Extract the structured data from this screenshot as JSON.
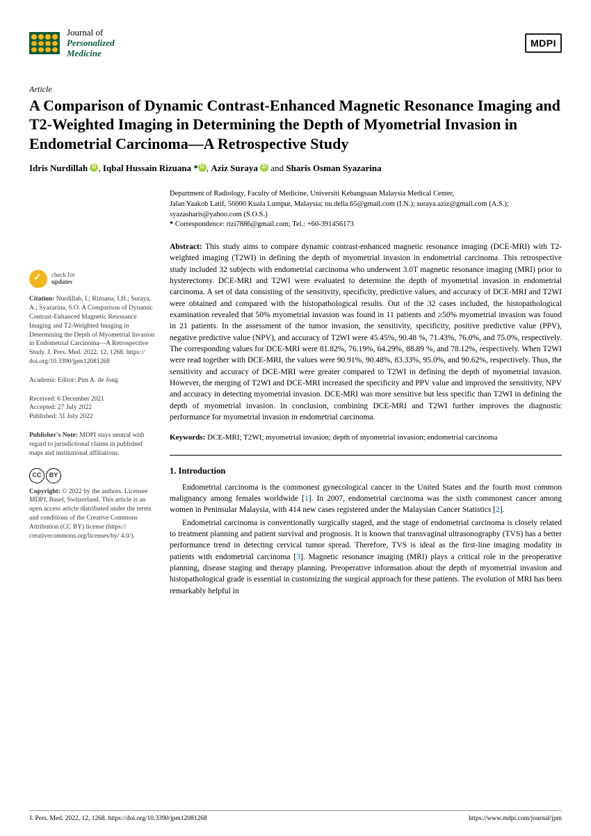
{
  "journal": {
    "line1": "Journal of",
    "line2": "Personalized",
    "line3": "Medicine"
  },
  "publisher_logo": "MDPI",
  "article_type": "Article",
  "title": "A Comparison of Dynamic Contrast-Enhanced Magnetic Resonance Imaging and T2-Weighted Imaging in Determining the Depth of Myometrial Invasion in Endometrial Carcinoma—A Retrospective Study",
  "authors": {
    "a1": "Idris Nurdillah",
    "a2": "Iqbal Hussain Rizuana *",
    "a3": "Aziz Suraya",
    "a4": "Sharis Osman Syazarina",
    "sep_comma": ", ",
    "sep_and": " and "
  },
  "affiliation": {
    "dept": "Department of Radiology, Faculty of Medicine, Universiti Kebangsaan Malaysia Medical Center,",
    "addr": "Jalan Yaakob Latif, 56000 Kuala Lumpur, Malaysia; nu.della.65@gmail.com (I.N.); suraya.aziz@gmail.com (A.S.);",
    "mail": "syazasharis@yahoo.com (S.O.S.)",
    "corr_star": "*",
    "corr": "Correspondence: rizi7886@gmail.com; Tel.: +60-391456173"
  },
  "abstract_label": "Abstract:",
  "abstract": "This study aims to compare dynamic contrast-enhanced magnetic resonance imaging (DCE-MRI) with T2-weighted imaging (T2WI) in defining the depth of myometrial invasion in endometrial carcinoma. This retrospective study included 32 subjects with endometrial carcinoma who underwent 3.0T magnetic resonance imaging (MRI) prior to hysterectomy. DCE-MRI and T2WI were evaluated to determine the depth of myometrial invasion in endometrial carcinoma. A set of data consisting of the sensitivity, specificity, predictive values, and accuracy of DCE-MRI and T2WI were obtained and compared with the histopathological results. Out of the 32 cases included, the histopathological examination revealed that 50% myometrial invasion was found in 11 patients and ≥50% myometrial invasion was found in 21 patients. In the assessment of the tumor invasion, the sensitivity, specificity, positive predictive value (PPV), negative predictive value (NPV), and accuracy of T2WI were 45.45%, 90.48 %, 71.43%, 76.0%, and 75.0%, respectively. The corresponding values for DCE-MRI were 81.82%, 76.19%, 64.29%, 88.89 %, and 78.12%, respectively. When T2WI were read together with DCE-MRI, the values were 90.91%, 90.48%, 83.33%, 95.0%, and 90.62%, respectively. Thus, the sensitivity and accuracy of DCE-MRI were greater compared to T2WI in defining the depth of myometrial invasion. However, the merging of T2WI and DCE-MRI increased the specificity and PPV value and improved the sensitivity, NPV and accuracy in detecting myometrial invasion. DCE-MRI was more sensitive but less specific than T2WI in defining the depth of myometrial invasion. In conclusion, combining DCE-MRI and T2WI further improves the diagnostic performance for myometrial invasion in endometrial carcinoma.",
  "keywords_label": "Keywords:",
  "keywords": "DCE-MRI; T2WI; myometrial invasion; depth of myometrial invasion; endometrial carcinoma",
  "section1_title": "1. Introduction",
  "intro_p1a": "Endometrial carcinoma is the commonest gynecological cancer in the United States and the fourth most common malignancy among females worldwide [",
  "intro_p1b": "]. In 2007, endometrial carcinoma was the sixth commonest cancer among women in Peninsular Malaysia, with 414 new cases registered under the Malaysian Cancer Statistics [",
  "intro_p1c": "].",
  "ref1": "1",
  "ref2": "2",
  "ref3": "3",
  "intro_p2a": "Endometrial carcinoma is conventionally surgically staged, and the stage of endometrial carcinoma is closely related to treatment planning and patient survival and prognosis. It is known that transvaginal ultrasonography (TVS) has a better performance trend in detecting cervical tumor spread. Therefore, TVS is ideal as the first-line imaging modality in patients with endometrial carcinoma [",
  "intro_p2b": "]. Magnetic resonance imaging (MRI) plays a critical role in the preoperative planning, disease staging and therapy planning. Preoperative information about the depth of myometrial invasion and histopathological grade is essential in customizing the surgical approach for these patients. The evolution of MRI has been remarkably helpful in",
  "sidebar": {
    "check_l1": "check for",
    "check_l2": "updates",
    "citation_label": "Citation:",
    "citation": "Nurdillah, I.; Rizuana, I.H.; Suraya, A.; Syazarina, S.O. A Comparison of Dynamic Contrast-Enhanced Magnetic Resonance Imaging and T2-Weighted Imaging in Determining the Depth of Myometrial Invasion in Endometrial Carcinoma—A Retrospective Study. J. Pers. Med. 2022, 12, 1268. https:// doi.org/10.3390/jpm12081268",
    "editor": "Academic Editor: Pim A. de Jong",
    "received": "Received: 6 December 2021",
    "accepted": "Accepted: 27 July 2022",
    "published": "Published: 31 July 2022",
    "pubnote_label": "Publisher's Note:",
    "pubnote": "MDPI stays neutral with regard to jurisdictional claims in published maps and institutional affiliations.",
    "cc_cc": "CC",
    "cc_by": "BY",
    "copyright_label": "Copyright:",
    "copyright": "© 2022 by the authors. Licensee MDPI, Basel, Switzerland. This article is an open access article distributed under the terms and conditions of the Creative Commons Attribution (CC BY) license (https:// creativecommons.org/licenses/by/ 4.0/)."
  },
  "footer": {
    "left": "J. Pers. Med. 2022, 12, 1268. https://doi.org/10.3390/jpm12081268",
    "right": "https://www.mdpi.com/journal/jpm"
  }
}
